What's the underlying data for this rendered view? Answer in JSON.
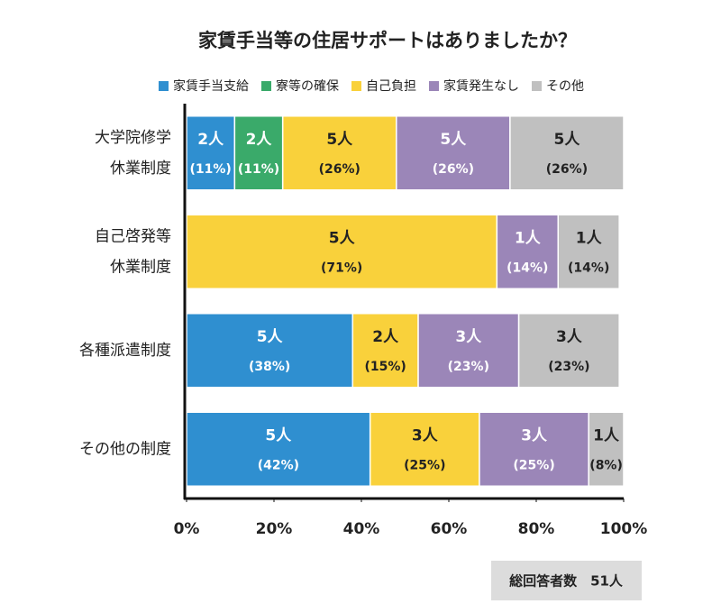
{
  "chart_data": {
    "type": "stacked-bar-horizontal",
    "title": "家賃手当等の住居サポートはありましたか？",
    "categories": [
      "大学院修学\n休業制度",
      "自己啓発等\n休業制度",
      "各種派遣制度",
      "その他の制度"
    ],
    "series": [
      {
        "name": "家賃手当支給",
        "color": "#2f8fd0",
        "label_color": "#ffffff",
        "values": [
          11,
          null,
          38,
          42
        ],
        "value_labels": [
          "(11%)",
          null,
          "(38%)",
          "(42%)"
        ],
        "count_labels": [
          "2人",
          null,
          "5人",
          "5人"
        ]
      },
      {
        "name": "寮等の確保",
        "color": "#3aaa6a",
        "label_color": "#ffffff",
        "values": [
          11,
          null,
          null,
          null
        ],
        "value_labels": [
          "(11%)",
          null,
          null,
          null
        ],
        "count_labels": [
          "2人",
          null,
          null,
          null
        ]
      },
      {
        "name": "自己負担",
        "color": "#f9d13b",
        "label_color": "#222222",
        "values": [
          26,
          71,
          15,
          25
        ],
        "value_labels": [
          "(26%)",
          "(71%)",
          "(15%)",
          "(25%)"
        ],
        "count_labels": [
          "5人",
          "5人",
          "2人",
          "3人"
        ]
      },
      {
        "name": "家賃発生なし",
        "color": "#9b86b8",
        "label_color": "#ffffff",
        "values": [
          26,
          14,
          23,
          25
        ],
        "value_labels": [
          "(26%)",
          "(14%)",
          "(23%)",
          "(25%)"
        ],
        "count_labels": [
          "5人",
          "1人",
          "3人",
          "3人"
        ]
      },
      {
        "name": "その他",
        "color": "#c0c0c0",
        "label_color": "#222222",
        "values": [
          26,
          14,
          23,
          8
        ],
        "value_labels": [
          "(26%)",
          "(14%)",
          "(23%)",
          "(8%)"
        ],
        "count_labels": [
          "5人",
          "1人",
          "3人",
          "1人"
        ]
      }
    ],
    "xlim": [
      0,
      100
    ],
    "xticks": [
      {
        "value": 0,
        "label": "0%"
      },
      {
        "value": 20,
        "label": "20%"
      },
      {
        "value": 40,
        "label": "40%"
      },
      {
        "value": 60,
        "label": "60%"
      },
      {
        "value": 80,
        "label": "80%"
      },
      {
        "value": 100,
        "label": "100%"
      }
    ],
    "note": "総回答者数　51人"
  }
}
